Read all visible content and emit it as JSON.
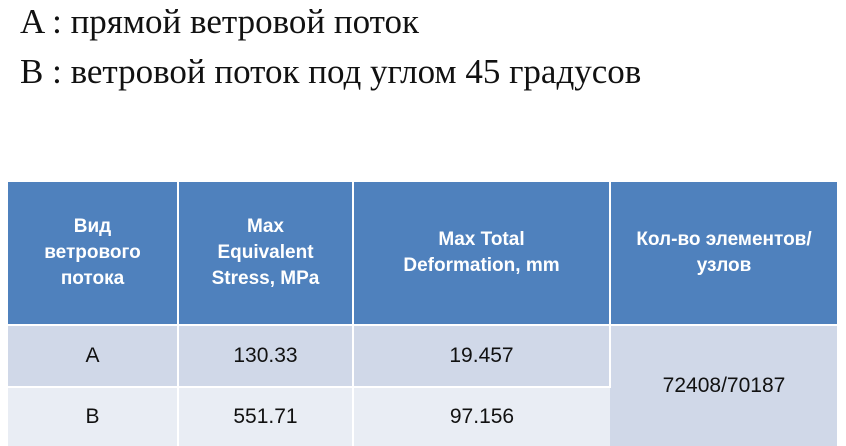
{
  "legend": {
    "lines": [
      "A :  прямой ветровой поток",
      "B :  ветровой поток под углом 45 градусов"
    ]
  },
  "table": {
    "header": [
      "Вид ветрового потока",
      "Max Equivalent Stress, MPa",
      "Max Total Deformation, mm",
      "Кол-во элементов/узлов"
    ],
    "rows": [
      [
        "A",
        "130.33",
        "19.457",
        "72408/70187"
      ],
      [
        "B",
        "551.71",
        "97.156"
      ]
    ]
  }
}
